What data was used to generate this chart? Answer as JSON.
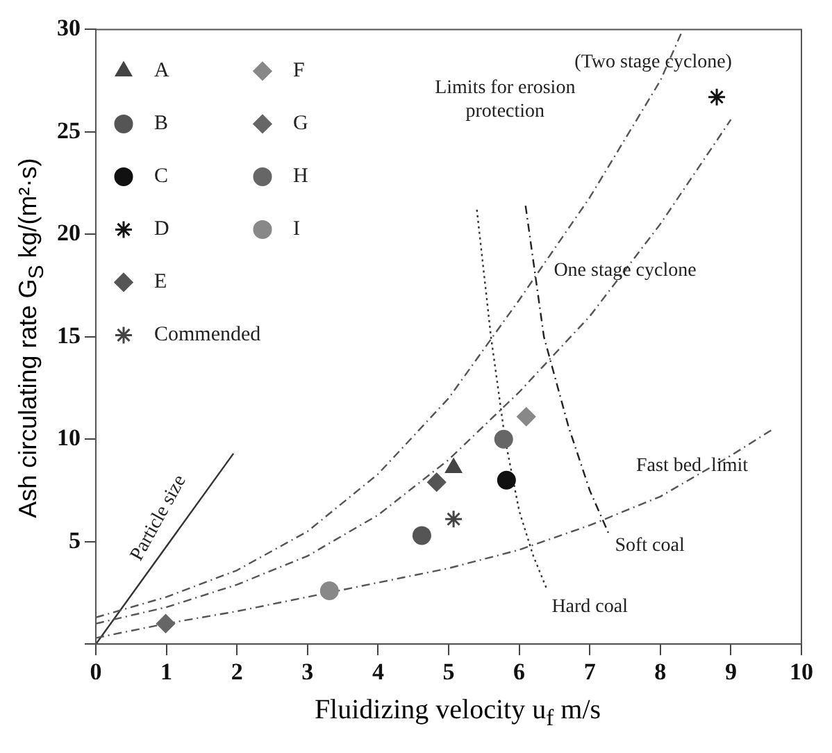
{
  "chart_data": {
    "type": "scatter",
    "xlabel": "Fluidizing velocity u$_{f}$ m/s",
    "ylabel": "Ash circulating rate G$_{S}$ kg/(m²·s)",
    "xlim": [
      0,
      10
    ],
    "ylim": [
      0,
      30
    ],
    "xticks": [
      0,
      1,
      2,
      3,
      4,
      5,
      6,
      7,
      8,
      9,
      10
    ],
    "yticks": [
      {
        "value": 0,
        "label": null
      },
      5,
      10,
      15,
      20,
      25,
      30
    ],
    "grid": false,
    "legend": "top left",
    "series": [
      {
        "name": "A",
        "color": "#444444",
        "marker": "triangle",
        "x": [
          5.07
        ],
        "values": [
          8.6
        ]
      },
      {
        "name": "B",
        "color": "#555555",
        "marker": "circle",
        "x": [
          4.62
        ],
        "values": [
          5.3
        ]
      },
      {
        "name": "C",
        "color": "#111111",
        "marker": "circle",
        "x": [
          5.82
        ],
        "values": [
          8.0
        ]
      },
      {
        "name": "D",
        "color": "#111111",
        "marker": "cross",
        "x": [
          8.8
        ],
        "values": [
          26.7
        ]
      },
      {
        "name": "E",
        "color": "#555555",
        "marker": "diamond",
        "x": [
          4.83
        ],
        "values": [
          7.9
        ]
      },
      {
        "name": "Commended",
        "color": "#444444",
        "marker": "cross",
        "x": [
          5.07
        ],
        "values": [
          6.1
        ]
      },
      {
        "name": "F",
        "color": "#888888",
        "marker": "diamond",
        "x": [
          6.1
        ],
        "values": [
          11.1
        ]
      },
      {
        "name": "G",
        "color": "#666666",
        "marker": "diamond",
        "x": [
          0.99
        ],
        "values": [
          1.0
        ]
      },
      {
        "name": "H",
        "color": "#666666",
        "marker": "circle",
        "x": [
          5.78
        ],
        "values": [
          10.0
        ]
      },
      {
        "name": "I",
        "color": "#888888",
        "marker": "circle",
        "x": [
          3.31
        ],
        "values": [
          2.6
        ]
      },
      {
        "type": "line",
        "color": "#555555",
        "marker": "none",
        "line_style": "dashed",
        "x": [
          0,
          1,
          2,
          3,
          4,
          5,
          6,
          7,
          8,
          8.32
        ],
        "values": [
          1.3,
          2.3,
          3.6,
          5.5,
          8.3,
          12,
          16.8,
          21.8,
          27.5,
          30
        ]
      },
      {
        "type": "line",
        "color": "#555555",
        "marker": "none",
        "line_style": "dashed",
        "x": [
          0,
          1,
          2,
          3,
          4,
          5,
          6,
          7,
          8,
          9
        ],
        "values": [
          1.0,
          1.8,
          2.9,
          4.3,
          6.3,
          9,
          12.3,
          16,
          20.5,
          25.6
        ]
      },
      {
        "type": "line",
        "color": "#555555",
        "marker": "none",
        "line_style": "dashed",
        "x": [
          0,
          1,
          2,
          3,
          4,
          5,
          6,
          7,
          8,
          9,
          9.6
        ],
        "values": [
          0.3,
          1,
          1.6,
          2.3,
          3,
          3.7,
          4.6,
          5.8,
          7.2,
          9.2,
          10.5
        ]
      },
      {
        "type": "line",
        "color": "#333333",
        "marker": "none",
        "line_style": "solid",
        "x": [
          0,
          1.95
        ],
        "values": [
          0,
          9.3
        ]
      },
      {
        "type": "line",
        "color": "#333333",
        "marker": "none",
        "line_style": "dotted",
        "x": [
          5.4,
          5.6,
          5.8,
          6.0,
          6.2,
          6.39
        ],
        "values": [
          21.2,
          15,
          10,
          6.5,
          4.3,
          2.7
        ]
      },
      {
        "type": "line",
        "color": "#222222",
        "marker": "none",
        "line_style": "dashed",
        "x": [
          6.09,
          6.35,
          6.7,
          7.0,
          7.28
        ],
        "values": [
          21.4,
          15,
          10.6,
          7.5,
          5.3
        ]
      }
    ],
    "annotations": [
      "(Two stage cyclone)",
      "Limits for erosion protection",
      "One stage cyclone",
      "Fast bed  limit",
      "Soft coal",
      "Hard coal",
      "Particle size"
    ]
  }
}
